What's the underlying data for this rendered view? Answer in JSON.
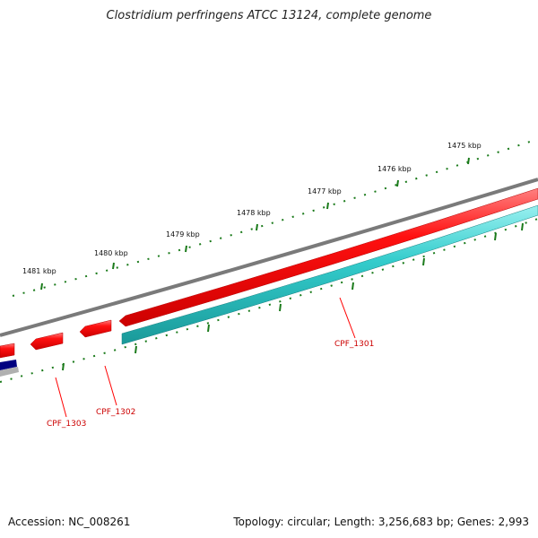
{
  "title": "Clostridium perfringens ATCC 13124, complete genome",
  "footer": {
    "accession_label": "Accession: NC_008261",
    "summary": "Topology: circular; Length: 3,256,683 bp; Genes: 2,993"
  },
  "ruler": {
    "labels": [
      "1475 kbp",
      "1476 kbp",
      "1477 kbp",
      "1478 kbp",
      "1479 kbp",
      "1480 kbp",
      "1481 kbp"
    ]
  },
  "genes": [
    {
      "name": "CPF_1301",
      "label": "CPF_1301",
      "strand": "reverse",
      "color": "#ff0000"
    },
    {
      "name": "CPF_1302",
      "label": "CPF_1302",
      "strand": "reverse",
      "color": "#ff0000"
    },
    {
      "name": "CPF_1303",
      "label": "CPF_1303",
      "strand": "reverse",
      "color": "#ff0000"
    }
  ],
  "colors": {
    "backbone": "#7a7a7a",
    "cds": "#ff0000",
    "cds_forward": "#33cccc",
    "ticks": "#1a7a1a",
    "labels": "#cc0000",
    "rna": "#000080"
  }
}
